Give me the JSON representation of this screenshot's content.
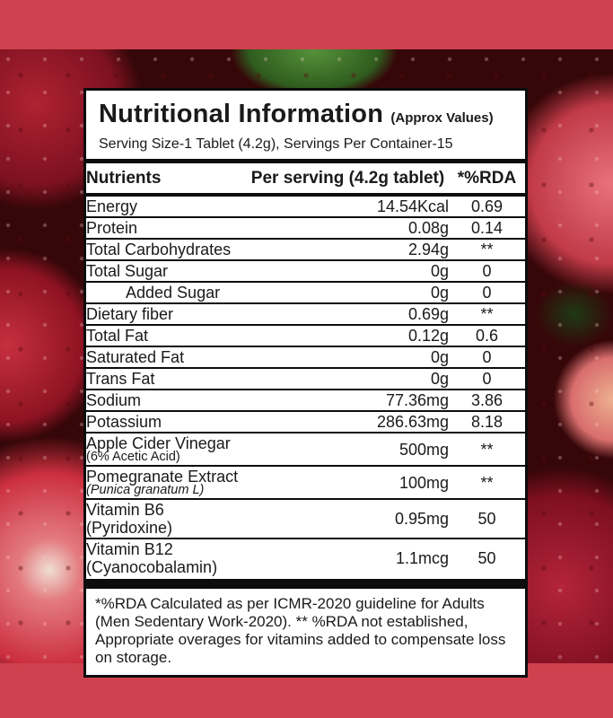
{
  "theme": {
    "band_color": "#cf414e",
    "label_background": "#ffffff",
    "label_border_color": "#0d0d0d",
    "text_color": "#1a1a1a"
  },
  "label": {
    "title": "Nutritional Information",
    "title_suffix": "(Approx Values)",
    "serving_line": "Serving Size-1 Tablet (4.2g), Servings Per Container-15",
    "columns": {
      "nutrient": "Nutrients",
      "per_serving": "Per serving (4.2g tablet)",
      "rda": "*%RDA"
    },
    "rows": [
      {
        "name": "Energy",
        "value": "14.54Kcal",
        "rda": "0.69"
      },
      {
        "name": "Protein",
        "value": "0.08g",
        "rda": "0.14"
      },
      {
        "name": "Total Carbohydrates",
        "value": "2.94g",
        "rda": "**"
      },
      {
        "name": "Total Sugar",
        "value": "0g",
        "rda": "0"
      },
      {
        "name": "Added Sugar",
        "value": "0g",
        "rda": "0",
        "indent": true
      },
      {
        "name": "Dietary fiber",
        "value": "0.69g",
        "rda": "**"
      },
      {
        "name": "Total Fat",
        "value": "0.12g",
        "rda": "0.6"
      },
      {
        "name": "Saturated Fat",
        "value": "0g",
        "rda": "0"
      },
      {
        "name": "Trans Fat",
        "value": "0g",
        "rda": "0"
      },
      {
        "name": "Sodium",
        "value": "77.36mg",
        "rda": "3.86"
      },
      {
        "name": "Potassium",
        "value": "286.63mg",
        "rda": "8.18"
      },
      {
        "name": "Apple Cider Vinegar",
        "subname": "(6% Acetic Acid)",
        "value": "500mg",
        "rda": "**"
      },
      {
        "name": "Pomegranate Extract",
        "subname": "(Punica granatum L)",
        "subname_italic": true,
        "value": "100mg",
        "rda": "**"
      },
      {
        "name": "Vitamin B6 (Pyridoxine)",
        "value": "0.95mg",
        "rda": "50"
      },
      {
        "name": "Vitamin B12 (Cyanocobalamin)",
        "value": "1.1mcg",
        "rda": "50"
      }
    ],
    "footnote": "*%RDA Calculated as per ICMR-2020 guideline for Adults (Men Sedentary Work-2020). ** %RDA not established, Appropriate overages for vitamins added to compensate loss on storage."
  }
}
